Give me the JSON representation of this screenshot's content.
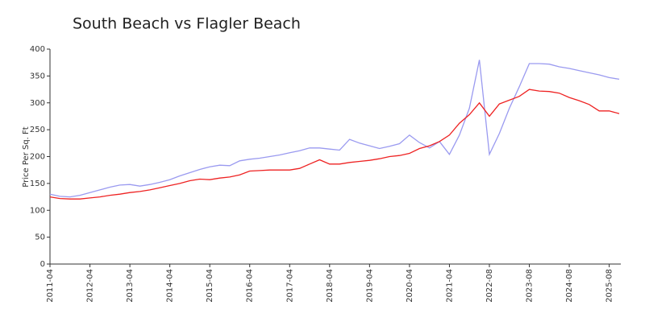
{
  "chart_data": {
    "type": "line",
    "title": "South Beach vs Flagler Beach",
    "y_label": "Price Per Sq. Ft",
    "categories": [
      "2011-04",
      null,
      null,
      null,
      "2012-04",
      null,
      null,
      null,
      "2013-04",
      null,
      null,
      null,
      "2014-04",
      null,
      null,
      null,
      "2015-04",
      null,
      null,
      null,
      "2016-04",
      null,
      null,
      null,
      "2017-04",
      null,
      null,
      null,
      "2018-04",
      null,
      null,
      null,
      "2019-04",
      null,
      null,
      null,
      "2020-04",
      null,
      null,
      null,
      "2021-04",
      null,
      null,
      null,
      "2022-08",
      null,
      null,
      null,
      "2023-08",
      null,
      null,
      null,
      "2024-08",
      null,
      null,
      null,
      "2025-08",
      null
    ],
    "series": [
      {
        "color": "#9a9af0",
        "values": [
          130,
          126,
          125,
          128,
          133,
          138,
          143,
          147,
          148,
          145,
          148,
          152,
          157,
          164,
          170,
          176,
          181,
          184,
          183,
          192,
          195,
          197,
          200,
          203,
          207,
          211,
          216,
          216,
          214,
          212,
          232,
          225,
          220,
          215,
          219,
          224,
          240,
          226,
          216,
          228,
          204,
          240,
          290,
          380,
          204,
          243,
          290,
          330,
          373,
          373,
          372,
          367,
          364,
          360,
          356,
          352,
          347,
          344
        ]
      },
      {
        "color": "#ee2222",
        "values": [
          125,
          122,
          121,
          121,
          123,
          125,
          128,
          130,
          133,
          135,
          138,
          142,
          146,
          150,
          155,
          158,
          157,
          160,
          162,
          166,
          173,
          174,
          175,
          175,
          175,
          178,
          186,
          194,
          186,
          186,
          189,
          191,
          193,
          196,
          200,
          202,
          206,
          215,
          220,
          228,
          240,
          262,
          278,
          300,
          275,
          298,
          305,
          312,
          325,
          322,
          321,
          318,
          310,
          304,
          297,
          285,
          285,
          280
        ]
      }
    ],
    "ylim": [
      0,
      400
    ],
    "yticks": [
      0,
      50,
      100,
      150,
      200,
      250,
      300,
      350,
      400
    ]
  }
}
